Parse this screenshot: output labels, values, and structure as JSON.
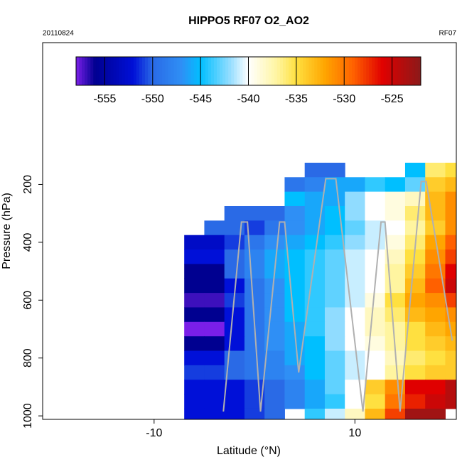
{
  "chart_data": {
    "type": "heatmap",
    "title": "HIPPO5 RF07 O2_AO2",
    "subtitle_left": "20110824",
    "subtitle_right": "RF07",
    "xlabel": "Latitude (°N)",
    "ylabel": "Pressure (hPa)",
    "xlim": [
      -21.1,
      20.1
    ],
    "xticks": [
      -10,
      10
    ],
    "ylim": [
      1012,
      -290
    ],
    "yticks": [
      200,
      400,
      600,
      800,
      1000
    ],
    "clim": [
      -558,
      -522
    ],
    "cticks": [
      -555,
      -550,
      -545,
      -540,
      -535,
      -530,
      -525
    ],
    "colorscale": [
      [
        -558,
        "#7a1fe8"
      ],
      [
        -556,
        "#000090"
      ],
      [
        -552,
        "#0010d8"
      ],
      [
        -550,
        "#2a6ae6"
      ],
      [
        -547,
        "#2f8ff5"
      ],
      [
        -545,
        "#00bfff"
      ],
      [
        -542,
        "#90dcff"
      ],
      [
        -540,
        "#ffffff"
      ],
      [
        -537,
        "#fff5a0"
      ],
      [
        -535,
        "#ffe040"
      ],
      [
        -532,
        "#ffa500"
      ],
      [
        -529,
        "#ff6000"
      ],
      [
        -526,
        "#e00000"
      ],
      [
        -522,
        "#8b1a1a"
      ]
    ],
    "x": [
      -6,
      -4,
      -2,
      0,
      2,
      4,
      6,
      8,
      10,
      12,
      14,
      16,
      18,
      20
    ],
    "y": [
      150,
      200,
      250,
      300,
      350,
      400,
      450,
      500,
      550,
      600,
      650,
      700,
      750,
      800,
      850,
      900,
      950,
      1000
    ],
    "z": [
      [
        null,
        null,
        null,
        null,
        null,
        null,
        -550,
        -550,
        null,
        null,
        null,
        -545,
        -536,
        -535
      ],
      [
        null,
        null,
        null,
        null,
        null,
        -549,
        -548,
        -546,
        -546,
        -544,
        -545,
        -543,
        -534,
        -533
      ],
      [
        null,
        null,
        null,
        null,
        null,
        -545,
        -546,
        -546,
        -542,
        -540,
        -539,
        -538,
        -533,
        -531
      ],
      [
        null,
        null,
        -550,
        -550,
        -550,
        -547,
        -546,
        -545,
        -542,
        -540,
        -539,
        -536,
        -533,
        -531
      ],
      [
        null,
        -550,
        -550,
        -551,
        -549,
        -547,
        -546,
        -545,
        -543,
        -541,
        -540,
        -537,
        -534,
        -531
      ],
      [
        -553,
        -553,
        -551,
        -549,
        -547,
        -546,
        -545,
        -544,
        -542,
        -541,
        -539,
        -536,
        -532,
        -529
      ],
      [
        -552,
        -552,
        -550,
        -548,
        -546,
        -545,
        -544,
        -543,
        -541,
        -540,
        -538,
        -535,
        -531,
        -528
      ],
      [
        -556,
        -556,
        -550,
        -548,
        -546,
        -545,
        -544,
        -543,
        -541,
        -540,
        -537,
        -534,
        -530,
        -526
      ],
      [
        -556,
        -556,
        -552,
        -549,
        -547,
        -545,
        -544,
        -543,
        -541,
        -540,
        -537,
        -533,
        -529,
        -525
      ],
      [
        -557,
        -557,
        -551,
        -549,
        -547,
        -545,
        -544,
        -543,
        -541,
        -539,
        -535,
        -532,
        -531,
        -528
      ],
      [
        -556,
        -556,
        -552,
        -549,
        -547,
        -545,
        -544,
        -542,
        -540,
        -538,
        -536,
        -533,
        -532,
        -531
      ],
      [
        -558,
        -558,
        -552,
        -549,
        -547,
        -546,
        -544,
        -542,
        -540,
        -538,
        -537,
        -535,
        -533,
        -532
      ],
      [
        -556,
        -556,
        -552,
        -549,
        -547,
        -546,
        -545,
        -542,
        -540,
        -539,
        -537,
        -535,
        -534,
        -533
      ],
      [
        -552,
        -552,
        -550,
        -549,
        -548,
        -546,
        -545,
        -543,
        -541,
        -540,
        -538,
        -536,
        -535,
        -534
      ],
      [
        -551,
        -551,
        -550,
        -549,
        -548,
        -547,
        -545,
        -543,
        -541,
        -540,
        -537,
        -535,
        -534,
        -534
      ],
      [
        -552,
        -552,
        -552,
        -551,
        -550,
        -548,
        -546,
        -543,
        -540,
        -534,
        -531,
        -526,
        -526,
        -524
      ],
      [
        -552,
        -552,
        -552,
        -551,
        -550,
        -548,
        -546,
        -544,
        -540,
        -535,
        -530,
        -527,
        -525,
        -524
      ],
      [
        -552,
        -552,
        -552,
        -551,
        -550,
        null,
        -544,
        -541,
        -538,
        -533,
        -528,
        -523,
        -523,
        null
      ]
    ],
    "track": {
      "color": "#b0b0b0",
      "x": [
        -3.1,
        -1.3,
        -0.7,
        0.6,
        2.5,
        3.0,
        4.4,
        7.1,
        8.1,
        10.8,
        12.6,
        13.0,
        14.5,
        16.6,
        17.1,
        19.7
      ],
      "y": [
        985,
        330,
        330,
        985,
        330,
        330,
        850,
        180,
        180,
        985,
        330,
        330,
        985,
        190,
        190,
        740
      ]
    }
  }
}
